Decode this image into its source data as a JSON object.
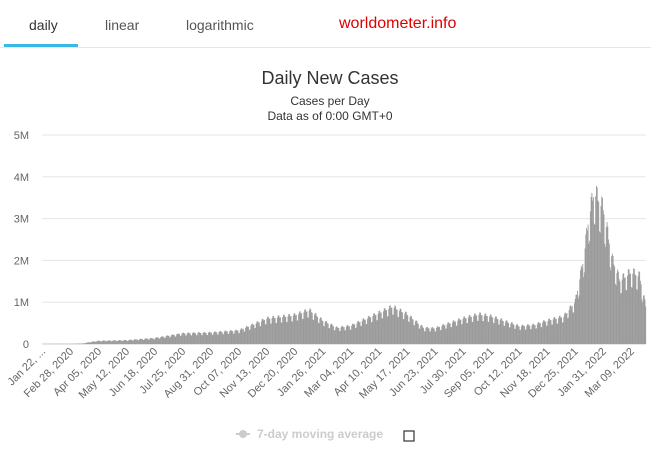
{
  "tabs": [
    {
      "label": "daily",
      "active": true
    },
    {
      "label": "linear",
      "active": false
    },
    {
      "label": "logarithmic",
      "active": false
    }
  ],
  "brand": "worldometer.info",
  "legend": {
    "label": "7-day moving average",
    "checked": false
  },
  "colors": {
    "bars": "#9b9b9b",
    "tab_underline": "#3bb8e6",
    "brand": "#e00000",
    "grid": "#e6e6e6"
  },
  "chart_data": {
    "type": "bar",
    "title": "Daily New Cases",
    "subtitle": "Cases per Day",
    "subtitle2": "Data as of 0:00 GMT+0",
    "xlabel": "",
    "ylabel": "",
    "ylim": [
      0,
      5000000
    ],
    "yticks": [
      0,
      1000000,
      2000000,
      3000000,
      4000000,
      5000000
    ],
    "ytick_labels": [
      "0",
      "1M",
      "2M",
      "3M",
      "4M",
      "5M"
    ],
    "grid": true,
    "x_start": "2020-01-22",
    "x_end": "2022-03-28",
    "xtick_labels": [
      "Jan 22, ...",
      "Feb 28, 2020",
      "Apr 05, 2020",
      "May 12, 2020",
      "Jun 18, 2020",
      "Jul 25, 2020",
      "Aug 31, 2020",
      "Oct 07, 2020",
      "Nov 13, 2020",
      "Dec 20, 2020",
      "Jan 26, 2021",
      "Mar 04, 2021",
      "Apr 10, 2021",
      "May 17, 2021",
      "Jun 23, 2021",
      "Jul 30, 2021",
      "Sep 05, 2021",
      "Oct 12, 2021",
      "Nov 18, 2021",
      "Dec 25, 2021",
      "Jan 31, 2022",
      "Mar 09, 2022"
    ],
    "trend_points": [
      [
        "2020-01-22",
        600
      ],
      [
        "2020-02-13",
        3000
      ],
      [
        "2020-02-28",
        2000
      ],
      [
        "2020-03-15",
        12000
      ],
      [
        "2020-03-26",
        50000
      ],
      [
        "2020-04-05",
        75000
      ],
      [
        "2020-05-12",
        90000
      ],
      [
        "2020-06-18",
        140000
      ],
      [
        "2020-07-25",
        250000
      ],
      [
        "2020-08-31",
        270000
      ],
      [
        "2020-10-07",
        320000
      ],
      [
        "2020-10-25",
        450000
      ],
      [
        "2020-11-13",
        600000
      ],
      [
        "2020-12-20",
        680000
      ],
      [
        "2021-01-08",
        800000
      ],
      [
        "2021-01-26",
        550000
      ],
      [
        "2021-02-14",
        380000
      ],
      [
        "2021-03-04",
        430000
      ],
      [
        "2021-03-25",
        600000
      ],
      [
        "2021-04-28",
        880000
      ],
      [
        "2021-05-17",
        700000
      ],
      [
        "2021-06-08",
        380000
      ],
      [
        "2021-06-23",
        370000
      ],
      [
        "2021-07-30",
        600000
      ],
      [
        "2021-08-20",
        700000
      ],
      [
        "2021-09-05",
        650000
      ],
      [
        "2021-10-12",
        420000
      ],
      [
        "2021-11-01",
        450000
      ],
      [
        "2021-11-18",
        550000
      ],
      [
        "2021-12-10",
        650000
      ],
      [
        "2021-12-25",
        1000000
      ],
      [
        "2022-01-05",
        2000000
      ],
      [
        "2022-01-12",
        3000000
      ],
      [
        "2022-01-19",
        3600000
      ],
      [
        "2022-01-31",
        3200000
      ],
      [
        "2022-02-12",
        2000000
      ],
      [
        "2022-02-22",
        1500000
      ],
      [
        "2022-03-09",
        1700000
      ],
      [
        "2022-03-20",
        1600000
      ],
      [
        "2022-03-28",
        900000
      ]
    ]
  }
}
